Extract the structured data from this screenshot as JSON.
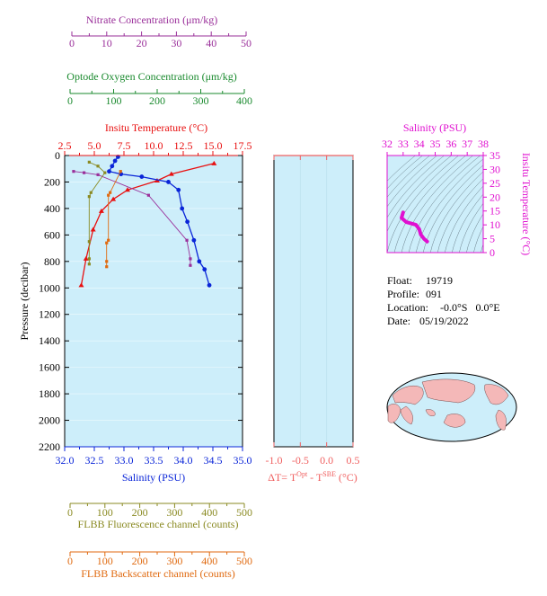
{
  "colors": {
    "nitrate": "#9a2f9a",
    "oxygen": "#1a8a2e",
    "temperature": "#e81010",
    "salinity": "#0a25d8",
    "fluorescence": "#8a8a22",
    "backscatter": "#e06a10",
    "delta": "#f06060",
    "ts": "#e010d0",
    "panel_bg": "#cdeefa"
  },
  "axes": {
    "nitrate": {
      "label": "Nitrate Concentration (μm/kg)",
      "ticks": [
        "0",
        "10",
        "20",
        "30",
        "40",
        "50"
      ],
      "range": [
        0,
        50
      ]
    },
    "oxygen": {
      "label": "Optode Oxygen Concentration (μm/kg)",
      "ticks": [
        "0",
        "100",
        "200",
        "300",
        "400"
      ],
      "range": [
        0,
        400
      ]
    },
    "temperature": {
      "label": "Insitu Temperature (°C)",
      "ticks": [
        "2.5",
        "5.0",
        "7.5",
        "10.0",
        "12.5",
        "15.0",
        "17.5"
      ],
      "range": [
        2.5,
        17.5
      ]
    },
    "pressure": {
      "label": "Pressure (decibar)",
      "ticks": [
        "0",
        "200",
        "400",
        "600",
        "800",
        "1000",
        "1200",
        "1400",
        "1600",
        "1800",
        "2000",
        "2200"
      ],
      "range": [
        0,
        2200
      ]
    },
    "salinity": {
      "label": "Salinity (PSU)",
      "ticks": [
        "32.0",
        "32.5",
        "33.0",
        "33.5",
        "34.0",
        "34.5",
        "35.0"
      ],
      "range": [
        32.0,
        35.0
      ]
    },
    "fluorescence": {
      "label": "FLBB Fluorescence channel (counts)",
      "ticks": [
        "0",
        "100",
        "200",
        "300",
        "400",
        "500"
      ],
      "range": [
        0,
        500
      ]
    },
    "backscatter": {
      "label": "FLBB Backscatter channel (counts)",
      "ticks": [
        "0",
        "100",
        "200",
        "300",
        "400",
        "500"
      ],
      "range": [
        0,
        500
      ]
    },
    "delta": {
      "label_prefix": "ΔT= T",
      "sup1": "Opt",
      "label_mid": " - T",
      "sup2": "SBE",
      "label_suffix": " (°C)",
      "ticks": [
        "-1.0",
        "-0.5",
        "0.0",
        "0.5"
      ],
      "range": [
        -1.0,
        0.5
      ]
    },
    "ts_salinity": {
      "label": "Salinity (PSU)",
      "ticks": [
        "32",
        "33",
        "34",
        "35",
        "36",
        "37",
        "38"
      ],
      "range": [
        32,
        38
      ]
    },
    "ts_temperature": {
      "label": "Insitu Temperature (°C)",
      "ticks": [
        "0",
        "5",
        "10",
        "15",
        "20",
        "25",
        "30",
        "35"
      ],
      "range": [
        0,
        35
      ]
    }
  },
  "info": {
    "float_label": "Float:",
    "float_value": "19719",
    "profile_label": "Profile:",
    "profile_value": "091",
    "location_label": "Location:",
    "location_value": "-0.0°S   0.0°E",
    "date_label": "Date:",
    "date_value": "05/19/2022"
  },
  "chart_data": [
    {
      "type": "line",
      "name": "profiles",
      "y_axis": "pressure",
      "series": [
        {
          "name": "temperature",
          "axis": "temperature",
          "x": [
            15.1,
            11.5,
            10.3,
            7.8,
            6.6,
            5.6,
            4.9,
            4.3,
            3.9
          ],
          "y": [
            60,
            140,
            190,
            260,
            330,
            420,
            560,
            780,
            980
          ]
        },
        {
          "name": "salinity",
          "axis": "salinity",
          "x": [
            32.9,
            32.85,
            32.8,
            32.75,
            32.95,
            33.3,
            33.75,
            33.92,
            33.98,
            34.07,
            34.18,
            34.27,
            34.36,
            34.44
          ],
          "y": [
            10,
            40,
            80,
            120,
            140,
            160,
            200,
            260,
            400,
            500,
            640,
            800,
            860,
            980
          ]
        },
        {
          "name": "nitrate",
          "axis": "nitrate",
          "x": [
            0.5,
            3.5,
            7.5,
            22.0,
            33.0,
            34.0,
            34.0
          ],
          "y": [
            120,
            130,
            145,
            300,
            640,
            780,
            830
          ]
        },
        {
          "name": "fluorescence",
          "axis": "fluorescence",
          "x": [
            55,
            80,
            100,
            60,
            55,
            55,
            55,
            55
          ],
          "y": [
            50,
            80,
            130,
            280,
            310,
            650,
            780,
            820
          ]
        },
        {
          "name": "backscatter",
          "axis": "backscatter",
          "x": [
            145,
            115,
            110,
            110,
            105,
            105,
            105
          ],
          "y": [
            120,
            280,
            300,
            640,
            660,
            800,
            840
          ]
        }
      ]
    },
    {
      "type": "line",
      "name": "delta_t",
      "y_axis": "pressure",
      "series": []
    },
    {
      "type": "line",
      "name": "ts_diagram",
      "x_axis": "ts_salinity",
      "y_axis": "ts_temperature",
      "series": [
        {
          "name": "ts",
          "x": [
            33.0,
            32.9,
            33.2,
            33.8,
            34.0,
            34.1,
            34.3,
            34.5
          ],
          "y": [
            14.5,
            12.5,
            11.0,
            10.0,
            8.5,
            6.5,
            5.0,
            4.0
          ]
        }
      ]
    }
  ]
}
